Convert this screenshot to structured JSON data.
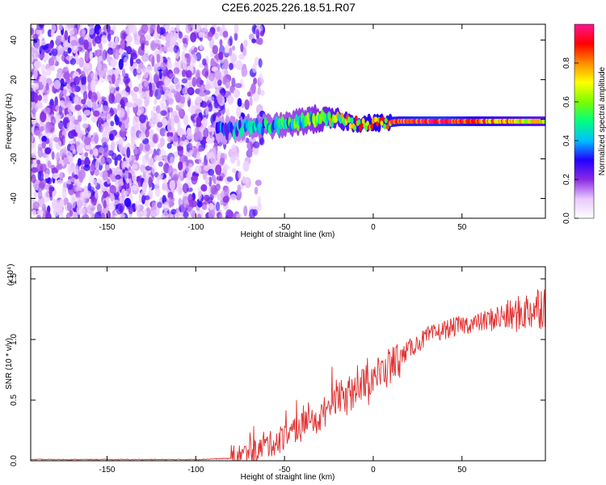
{
  "title": "C2E6.2025.226.18.51.R07",
  "chart_data": [
    {
      "type": "heatmap",
      "xlabel": "Height of straight line (km)",
      "ylabel": "Frequency (Hz)",
      "xlim": [
        -193,
        97
      ],
      "ylim": [
        -50,
        48
      ],
      "x_ticks": [
        -150,
        -100,
        -50,
        0,
        50
      ],
      "y_ticks": [
        -40,
        -20,
        0,
        20,
        40
      ],
      "colorbar": {
        "label": "Normalized spectral amplitude",
        "range": [
          0,
          1
        ],
        "ticks": [
          "0.0",
          "0.2",
          "0.4",
          "0.6",
          "0.8"
        ],
        "colors": [
          "#ffffff",
          "#e9c8ff",
          "#8a2be2",
          "#2200ff",
          "#00bfff",
          "#00ff7f",
          "#7cfc00",
          "#ffff00",
          "#ff8c00",
          "#ff0000",
          "#ff1493"
        ]
      },
      "noise_region_x": [
        -193,
        -70
      ],
      "signal_band": [
        {
          "x": -88,
          "center": -6,
          "width": 12,
          "amplitude": 0.35
        },
        {
          "x": -70,
          "center": -4,
          "width": 10,
          "amplitude": 0.45
        },
        {
          "x": -50,
          "center": -3,
          "width": 10,
          "amplitude": 0.5
        },
        {
          "x": -35,
          "center": 0,
          "width": 12,
          "amplitude": 0.55
        },
        {
          "x": -20,
          "center": 0,
          "width": 8,
          "amplitude": 0.7
        },
        {
          "x": -10,
          "center": -2,
          "width": 6,
          "amplitude": 0.8
        },
        {
          "x": 0,
          "center": -2,
          "width": 6,
          "amplitude": 0.85
        },
        {
          "x": 15,
          "center": -1,
          "width": 5,
          "amplitude": 0.9
        },
        {
          "x": 40,
          "center": -1,
          "width": 5,
          "amplitude": 0.95
        },
        {
          "x": 60,
          "center": -1,
          "width": 5,
          "amplitude": 0.85
        },
        {
          "x": 80,
          "center": -1,
          "width": 5,
          "amplitude": 0.75
        },
        {
          "x": 97,
          "center": -1,
          "width": 5,
          "amplitude": 0.7
        }
      ]
    },
    {
      "type": "line",
      "xlabel": "Height of straight line (km)",
      "ylabel": "SNR (10 * v/v)",
      "y_multiplier": "(x10⁴)",
      "xlim": [
        -193,
        97
      ],
      "ylim": [
        0,
        1.6
      ],
      "x_ticks": [
        -150,
        -100,
        -50,
        0,
        50
      ],
      "y_ticks": [
        "0.0",
        "0.5",
        "1.0",
        "1.5"
      ],
      "color": "#e03030",
      "series": [
        {
          "x": [
            -193,
            -150,
            -100,
            -80,
            -70,
            -60,
            -50,
            -40,
            -30,
            -25,
            -20,
            -15,
            -10,
            -5,
            0,
            5,
            10,
            15,
            20,
            25,
            30,
            40,
            50,
            60,
            70,
            80,
            90,
            97
          ],
          "values": [
            0.01,
            0.01,
            0.01,
            0.02,
            0.05,
            0.12,
            0.2,
            0.28,
            0.35,
            0.45,
            0.55,
            0.5,
            0.6,
            0.65,
            0.7,
            0.72,
            0.78,
            0.85,
            0.92,
            0.97,
            1.02,
            1.08,
            1.12,
            1.14,
            1.18,
            1.2,
            1.25,
            1.3
          ]
        }
      ]
    }
  ]
}
